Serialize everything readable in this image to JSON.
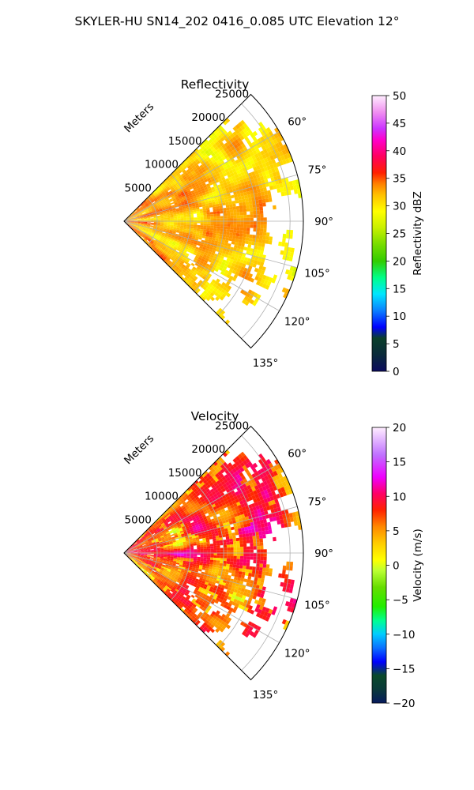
{
  "figure": {
    "suptitle": "SKYLER-HU  SN14_202  0416_0.085 UTC Elevation 12°"
  },
  "chart_data": [
    {
      "type": "heatmap",
      "projection": "polar-sector",
      "title": "Reflectivity",
      "radial_label": "Meters",
      "radial_ticks": [
        5000,
        10000,
        15000,
        20000,
        25000
      ],
      "radial_tick_labels": [
        "5000",
        "10000",
        "15000",
        "20000",
        "25000"
      ],
      "theta_ticks_deg": [
        60,
        75,
        90,
        105,
        120,
        135
      ],
      "theta_tick_labels": [
        "60°",
        "75°",
        "90°",
        "105°",
        "120°",
        "135°"
      ],
      "theta_range_deg": [
        45,
        135
      ],
      "radial_range_m": [
        0,
        27000
      ],
      "grid": true,
      "colorbar": {
        "label": "Reflectivity dBZ",
        "range": [
          0,
          50
        ],
        "ticks": [
          0,
          5,
          10,
          15,
          20,
          25,
          30,
          35,
          40,
          45,
          50
        ],
        "tick_labels": [
          "0",
          "5",
          "10",
          "15",
          "20",
          "25",
          "30",
          "35",
          "40",
          "45",
          "50"
        ],
        "colormap": "NWSRef"
      }
    },
    {
      "type": "heatmap",
      "projection": "polar-sector",
      "title": "Velocity",
      "radial_label": "Meters",
      "radial_ticks": [
        5000,
        10000,
        15000,
        20000,
        25000
      ],
      "radial_tick_labels": [
        "5000",
        "10000",
        "15000",
        "20000",
        "25000"
      ],
      "theta_ticks_deg": [
        60,
        75,
        90,
        105,
        120,
        135
      ],
      "theta_tick_labels": [
        "60°",
        "75°",
        "90°",
        "105°",
        "120°",
        "135°"
      ],
      "theta_range_deg": [
        45,
        135
      ],
      "radial_range_m": [
        0,
        27000
      ],
      "grid": true,
      "colorbar": {
        "label": "Velocity (m/s)",
        "range": [
          -20,
          20
        ],
        "ticks": [
          -20,
          -15,
          -10,
          -5,
          0,
          5,
          10,
          15,
          20
        ],
        "tick_labels": [
          "−20",
          "−15",
          "−10",
          "−5",
          "0",
          "5",
          "10",
          "15",
          "20"
        ],
        "colormap": "NWSVel"
      }
    }
  ],
  "colors": {
    "grid": "#b0b0b0",
    "ref_stops": [
      "#0b0b5e",
      "#0a3f2a",
      "#0a52ff",
      "#00e6ff",
      "#00ff66",
      "#33cc00",
      "#77dd00",
      "#b8ee00",
      "#ffff00",
      "#ffc000",
      "#ff8000",
      "#ff0000",
      "#ff00aa",
      "#cc00ff",
      "#ff99ff",
      "#ffe6ff"
    ],
    "vel_stops": [
      "#071a5e",
      "#0a4a2a",
      "#0a40ff",
      "#00ccff",
      "#00ff90",
      "#22ee00",
      "#66dd00",
      "#a6ff33",
      "#ffff00",
      "#ffcc00",
      "#ff8800",
      "#ff2200",
      "#ff0066",
      "#ee00ff",
      "#d070ff",
      "#ffddff"
    ]
  }
}
